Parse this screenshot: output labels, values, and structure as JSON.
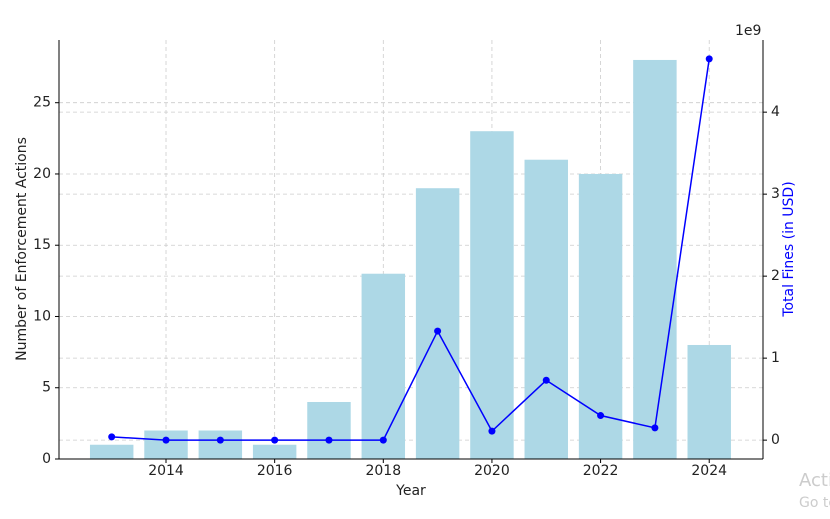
{
  "chart_data": {
    "type": "bar",
    "x_label": "Year",
    "y_label": "Number of Enforcement Actions",
    "y2_label": "Total Fines (in USD)",
    "y2_offset_label": "1e9",
    "x": [
      2013,
      2014,
      2015,
      2016,
      2017,
      2018,
      2019,
      2020,
      2021,
      2022,
      2023,
      2024
    ],
    "series": [
      {
        "type": "bar",
        "color": "#add8e6",
        "values": [
          1,
          2,
          2,
          1,
          4,
          13,
          19,
          23,
          21,
          20,
          28,
          8
        ]
      },
      {
        "type": "line",
        "axis": "y2",
        "color": "#0000ff",
        "values": [
          0.04,
          0,
          0,
          0,
          0,
          0,
          1.33,
          0.11,
          0.73,
          0.3,
          0.15,
          4.65
        ]
      }
    ],
    "xlim": [
      2012.03,
      2024.99
    ],
    "xticks": [
      2014,
      2016,
      2018,
      2020,
      2022,
      2024
    ],
    "ylim": [
      0,
      29.4
    ],
    "yticks": [
      0,
      5,
      10,
      15,
      20,
      25
    ],
    "y2lim": [
      -0.23,
      4.88
    ],
    "y2ticks": [
      0,
      1,
      2,
      3,
      4
    ],
    "grid": true
  },
  "watermark": {
    "line1": "Acti",
    "line2": "Go to"
  }
}
